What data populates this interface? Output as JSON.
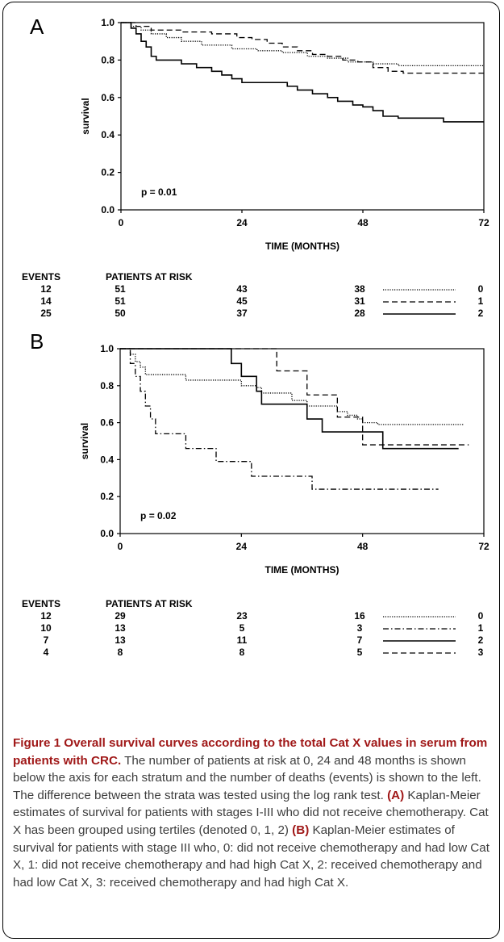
{
  "chart_data": [
    {
      "type": "line",
      "panel_label": "A",
      "xlabel": "TIME (MONTHS)",
      "ylabel": "survival",
      "xlim": [
        0,
        72
      ],
      "ylim": [
        0,
        1.0
      ],
      "x_ticks": [
        0,
        24,
        48,
        72
      ],
      "y_ticks": [
        0.0,
        0.2,
        0.4,
        0.6,
        0.8,
        1.0
      ],
      "annotation": "p = 0.01",
      "series": [
        {
          "name": "0",
          "style": "dotted",
          "points": [
            [
              0,
              1.0
            ],
            [
              2,
              0.98
            ],
            [
              4,
              0.96
            ],
            [
              6,
              0.94
            ],
            [
              9,
              0.92
            ],
            [
              12,
              0.9
            ],
            [
              16,
              0.88
            ],
            [
              22,
              0.86
            ],
            [
              27,
              0.85
            ],
            [
              32,
              0.84
            ],
            [
              37,
              0.82
            ],
            [
              41,
              0.81
            ],
            [
              45,
              0.79
            ],
            [
              50,
              0.78
            ],
            [
              55,
              0.77
            ],
            [
              72,
              0.77
            ]
          ]
        },
        {
          "name": "1",
          "style": "dashed",
          "points": [
            [
              0,
              1.0
            ],
            [
              3,
              0.98
            ],
            [
              6,
              0.96
            ],
            [
              12,
              0.95
            ],
            [
              18,
              0.94
            ],
            [
              23,
              0.92
            ],
            [
              26,
              0.91
            ],
            [
              29,
              0.89
            ],
            [
              32,
              0.87
            ],
            [
              35,
              0.85
            ],
            [
              38,
              0.83
            ],
            [
              41,
              0.82
            ],
            [
              44,
              0.8
            ],
            [
              47,
              0.79
            ],
            [
              50,
              0.76
            ],
            [
              53,
              0.74
            ],
            [
              56,
              0.73
            ],
            [
              72,
              0.73
            ]
          ]
        },
        {
          "name": "2",
          "style": "solid",
          "points": [
            [
              0,
              1.0
            ],
            [
              2,
              0.97
            ],
            [
              3,
              0.94
            ],
            [
              4,
              0.9
            ],
            [
              5,
              0.87
            ],
            [
              6,
              0.82
            ],
            [
              7,
              0.8
            ],
            [
              10,
              0.8
            ],
            [
              12,
              0.78
            ],
            [
              15,
              0.76
            ],
            [
              18,
              0.74
            ],
            [
              20,
              0.72
            ],
            [
              22,
              0.7
            ],
            [
              24,
              0.68
            ],
            [
              31,
              0.68
            ],
            [
              33,
              0.66
            ],
            [
              35,
              0.64
            ],
            [
              38,
              0.62
            ],
            [
              41,
              0.6
            ],
            [
              43,
              0.58
            ],
            [
              46,
              0.56
            ],
            [
              48,
              0.55
            ],
            [
              50,
              0.53
            ],
            [
              52,
              0.5
            ],
            [
              55,
              0.49
            ],
            [
              62,
              0.49
            ],
            [
              64,
              0.47
            ],
            [
              72,
              0.47
            ]
          ]
        }
      ],
      "risk_table": {
        "events_header": "EVENTS",
        "risk_header": "PATIENTS AT RISK",
        "rows": [
          {
            "events": "12",
            "n0": "51",
            "n24": "43",
            "n48": "38",
            "style": "dotted",
            "label": "0"
          },
          {
            "events": "14",
            "n0": "51",
            "n24": "45",
            "n48": "31",
            "style": "dashed",
            "label": "1"
          },
          {
            "events": "25",
            "n0": "50",
            "n24": "37",
            "n48": "28",
            "style": "solid",
            "label": "2"
          }
        ]
      }
    },
    {
      "type": "line",
      "panel_label": "B",
      "xlabel": "TIME (MONTHS)",
      "ylabel": "survival",
      "xlim": [
        0,
        72
      ],
      "ylim": [
        0,
        1.0
      ],
      "x_ticks": [
        0,
        24,
        48,
        72
      ],
      "y_ticks": [
        0.0,
        0.2,
        0.4,
        0.6,
        0.8,
        1.0
      ],
      "annotation": "p = 0.02",
      "series": [
        {
          "name": "0",
          "style": "dotted",
          "points": [
            [
              0,
              1.0
            ],
            [
              2,
              0.97
            ],
            [
              3,
              0.93
            ],
            [
              4,
              0.9
            ],
            [
              5,
              0.86
            ],
            [
              12,
              0.86
            ],
            [
              13,
              0.83
            ],
            [
              22,
              0.83
            ],
            [
              24,
              0.8
            ],
            [
              27,
              0.79
            ],
            [
              28,
              0.76
            ],
            [
              31,
              0.76
            ],
            [
              34,
              0.72
            ],
            [
              37,
              0.69
            ],
            [
              41,
              0.69
            ],
            [
              43,
              0.66
            ],
            [
              45,
              0.64
            ],
            [
              47,
              0.62
            ],
            [
              48,
              0.6
            ],
            [
              51,
              0.59
            ],
            [
              68,
              0.59
            ]
          ]
        },
        {
          "name": "1",
          "style": "dashdot",
          "points": [
            [
              0,
              1.0
            ],
            [
              2,
              0.92
            ],
            [
              3,
              0.85
            ],
            [
              4,
              0.77
            ],
            [
              5,
              0.69
            ],
            [
              6,
              0.62
            ],
            [
              7,
              0.54
            ],
            [
              12,
              0.54
            ],
            [
              13,
              0.46
            ],
            [
              18,
              0.46
            ],
            [
              19,
              0.39
            ],
            [
              25,
              0.39
            ],
            [
              26,
              0.31
            ],
            [
              37,
              0.31
            ],
            [
              38,
              0.24
            ],
            [
              63,
              0.24
            ]
          ]
        },
        {
          "name": "2",
          "style": "solid",
          "points": [
            [
              0,
              1.0
            ],
            [
              22,
              1.0
            ],
            [
              22,
              0.92
            ],
            [
              24,
              0.85
            ],
            [
              27,
              0.77
            ],
            [
              28,
              0.7
            ],
            [
              35,
              0.7
            ],
            [
              37,
              0.62
            ],
            [
              40,
              0.55
            ],
            [
              51,
              0.55
            ],
            [
              52,
              0.46
            ],
            [
              67,
              0.46
            ]
          ]
        },
        {
          "name": "3",
          "style": "dashed",
          "points": [
            [
              0,
              1.0
            ],
            [
              31,
              1.0
            ],
            [
              31,
              0.88
            ],
            [
              36,
              0.88
            ],
            [
              37,
              0.75
            ],
            [
              42,
              0.75
            ],
            [
              43,
              0.63
            ],
            [
              47,
              0.63
            ],
            [
              48,
              0.48
            ],
            [
              69,
              0.48
            ]
          ]
        }
      ],
      "risk_table": {
        "events_header": "EVENTS",
        "risk_header": "PATIENTS AT RISK",
        "rows": [
          {
            "events": "12",
            "n0": "29",
            "n24": "23",
            "n48": "16",
            "style": "dotted",
            "label": "0"
          },
          {
            "events": "10",
            "n0": "13",
            "n24": "5",
            "n48": "3",
            "style": "dashdot",
            "label": "1"
          },
          {
            "events": "7",
            "n0": "13",
            "n24": "11",
            "n48": "7",
            "style": "solid",
            "label": "2"
          },
          {
            "events": "4",
            "n0": "8",
            "n24": "8",
            "n48": "5",
            "style": "dashed",
            "label": "3"
          }
        ]
      }
    }
  ],
  "caption": {
    "title": "Figure 1 Overall survival curves according to the total Cat X values in serum from patients with CRC.",
    "body1": " The number of patients at risk at 0, 24 and 48 months is shown below the axis for each stratum and the number of deaths (events) is shown to the left. The difference between the strata was tested using the log rank test. ",
    "label_a": "(A)",
    "body2": " Kaplan-Meier estimates of survival for patients with stages I-III who did not receive chemotherapy. Cat X has been grouped using tertiles (denoted 0, 1, 2) ",
    "label_b": "(B)",
    "body3": " Kaplan-Meier estimates of survival for patients with stage III who, 0: did not receive chemotherapy and had low Cat X, 1: did not receive chemotherapy and had high Cat X, 2: received chemotherapy and had low Cat X, 3: received chemotherapy and had high Cat X."
  }
}
